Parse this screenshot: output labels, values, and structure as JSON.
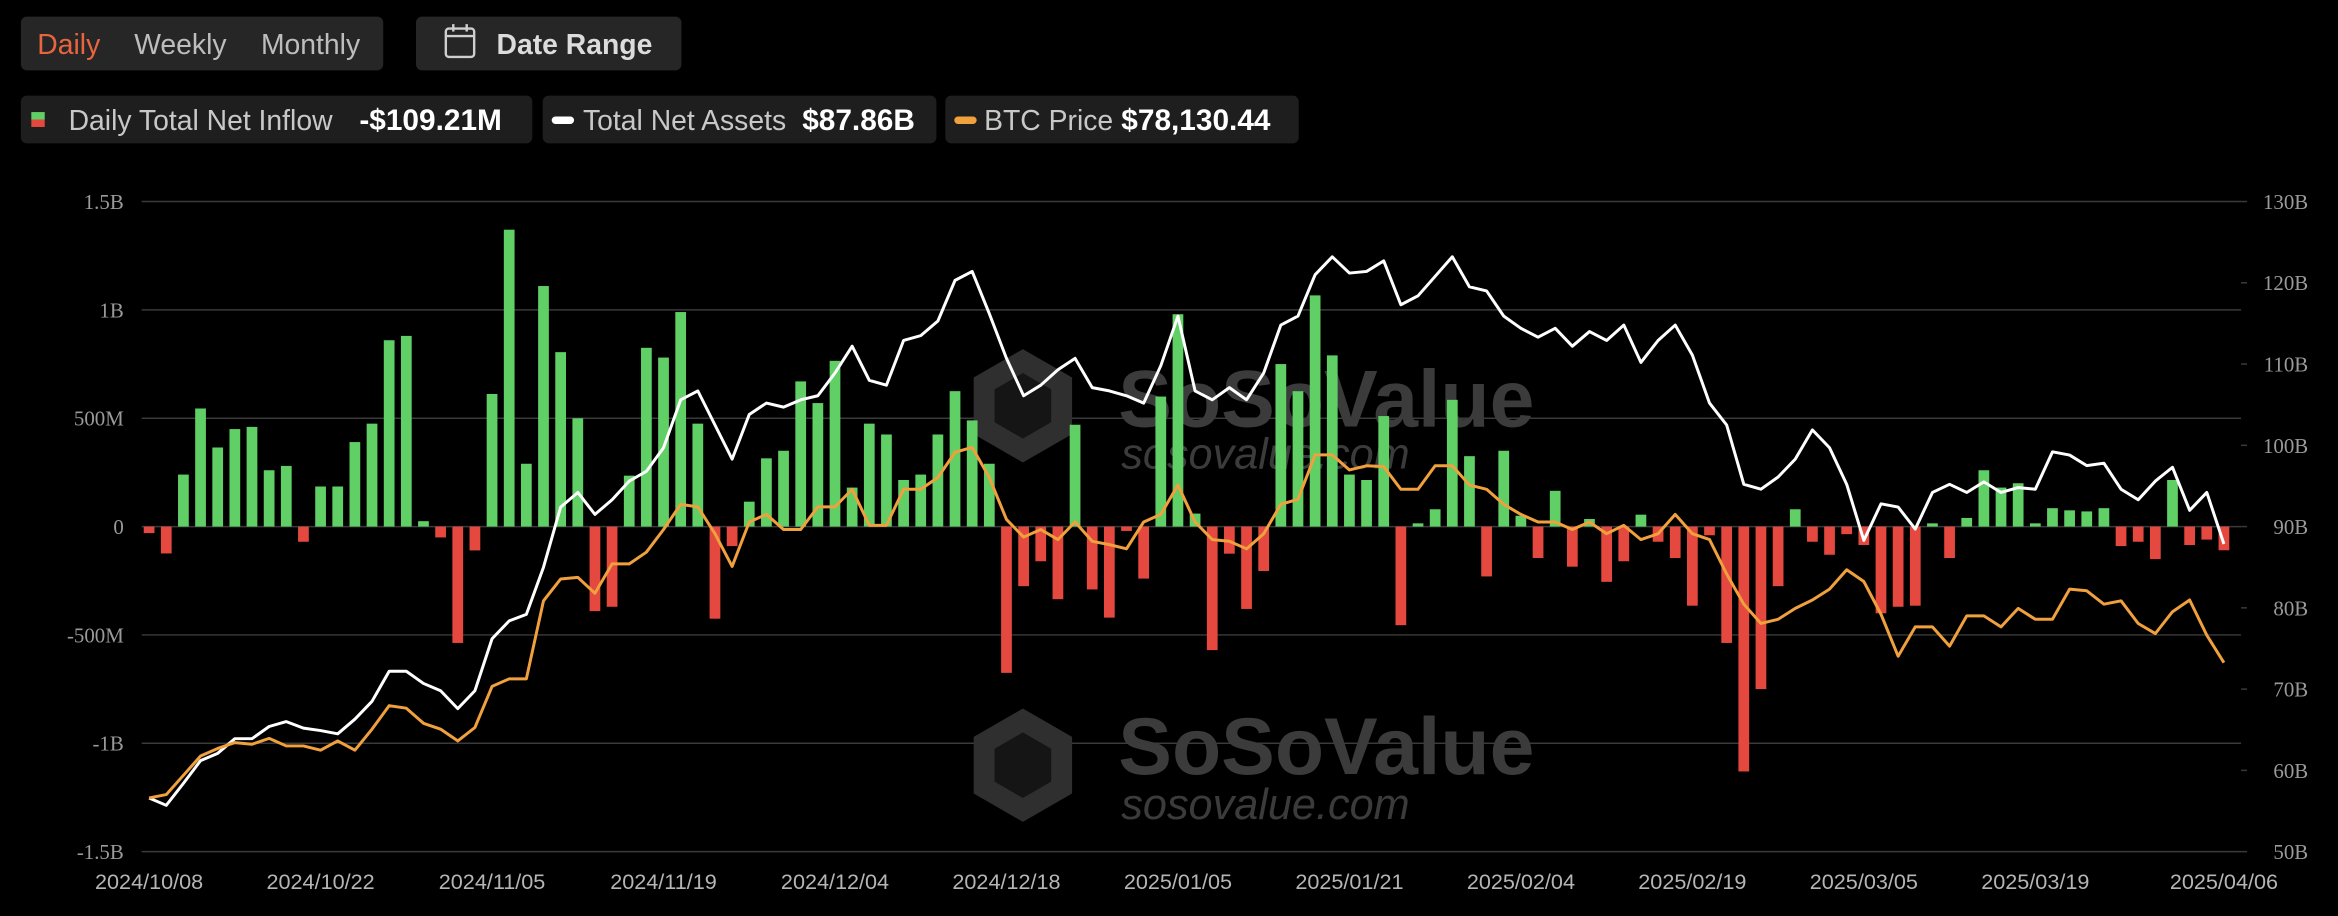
{
  "controls": {
    "periods": [
      "Daily",
      "Weekly",
      "Monthly"
    ],
    "active_period": 0,
    "date_range": "Date Range"
  },
  "watermark": {
    "brand": "SoSoValue",
    "site": "sosovalue.com"
  },
  "chart_data": {
    "type": "bar-line",
    "categories": [
      "2024/10/08",
      null,
      null,
      null,
      null,
      null,
      null,
      null,
      null,
      null,
      "2024/10/22",
      null,
      null,
      null,
      null,
      null,
      null,
      null,
      null,
      null,
      "2024/11/05",
      null,
      null,
      null,
      null,
      null,
      null,
      null,
      null,
      null,
      "2024/11/19",
      null,
      null,
      null,
      null,
      null,
      null,
      null,
      null,
      null,
      "2024/12/04",
      null,
      null,
      null,
      null,
      null,
      null,
      null,
      null,
      null,
      "2024/12/18",
      null,
      null,
      null,
      null,
      null,
      null,
      null,
      null,
      null,
      "2025/01/05",
      null,
      null,
      null,
      null,
      null,
      null,
      null,
      null,
      null,
      "2025/01/21",
      null,
      null,
      null,
      null,
      null,
      null,
      null,
      null,
      null,
      "2025/02/04",
      null,
      null,
      null,
      null,
      null,
      null,
      null,
      null,
      null,
      "2025/02/19",
      null,
      null,
      null,
      null,
      null,
      null,
      null,
      null,
      null,
      "2025/03/05",
      null,
      null,
      null,
      null,
      null,
      null,
      null,
      null,
      null,
      "2025/03/19",
      null,
      null,
      null,
      null,
      null,
      null,
      null,
      null,
      null,
      null,
      "2025/04/06"
    ],
    "series": [
      {
        "name": "Daily Total Net Inflow",
        "latest_label": "-$109.21M",
        "type": "bar",
        "color": "#5fcf66",
        "negative_color": "#e5483e",
        "values": [
          -30,
          -124,
          240,
          545,
          365,
          450,
          460,
          260,
          280,
          -70,
          185,
          185,
          390,
          475,
          860,
          880,
          25,
          -50,
          -537,
          -110,
          612,
          1370,
          290,
          1110,
          805,
          500,
          -390,
          -370,
          235,
          825,
          780,
          990,
          475,
          -425,
          -90,
          115,
          315,
          350,
          670,
          570,
          765,
          180,
          475,
          425,
          215,
          240,
          425,
          625,
          490,
          290,
          -675,
          -275,
          -160,
          -335,
          470,
          -290,
          -420,
          -20,
          -240,
          600,
          980,
          60,
          -570,
          -125,
          -380,
          -205,
          750,
          625,
          1067,
          790,
          240,
          215,
          510,
          -455,
          15,
          80,
          585,
          325,
          -230,
          350,
          50,
          -145,
          165,
          -185,
          35,
          -255,
          -160,
          55,
          -70,
          -145,
          -365,
          -40,
          -537,
          -1130,
          -750,
          -275,
          80,
          -70,
          -130,
          -35,
          -85,
          -400,
          -370,
          -365,
          15,
          -145,
          40,
          260,
          180,
          200,
          15,
          85,
          75,
          70,
          85,
          -90,
          -70,
          -150,
          215,
          -85,
          -60,
          -109.21
        ]
      },
      {
        "name": "Total Net Assets",
        "latest_label": "$87.86B",
        "type": "line",
        "axis": "y2",
        "color": "#ffffff",
        "values": [
          56.6,
          55.7,
          58.4,
          61.2,
          62.1,
          63.9,
          63.9,
          65.4,
          66.0,
          65.2,
          64.9,
          64.5,
          66.3,
          68.5,
          72.2,
          72.2,
          70.7,
          69.8,
          67.6,
          69.8,
          76.2,
          78.4,
          79.2,
          85.0,
          92.4,
          94.2,
          91.5,
          93.3,
          95.6,
          96.8,
          99.7,
          105.6,
          106.7,
          102.5,
          98.3,
          103.8,
          105.2,
          104.7,
          105.6,
          106.1,
          108.9,
          112.2,
          108.0,
          107.4,
          112.9,
          113.5,
          115.3,
          120.3,
          121.4,
          116.2,
          110.7,
          106.1,
          107.4,
          109.3,
          110.7,
          107.1,
          106.7,
          106.1,
          105.2,
          109.8,
          115.9,
          106.7,
          105.6,
          107.1,
          105.6,
          108.9,
          114.8,
          115.9,
          121.0,
          123.2,
          121.2,
          121.4,
          122.7,
          117.3,
          118.4,
          120.8,
          123.2,
          119.5,
          119.0,
          115.9,
          114.4,
          113.3,
          114.4,
          112.2,
          114.0,
          112.9,
          114.8,
          110.2,
          112.9,
          114.8,
          111.1,
          105.2,
          102.5,
          95.2,
          94.6,
          96.1,
          98.3,
          101.9,
          99.7,
          95.2,
          88.3,
          92.8,
          92.4,
          89.7,
          94.2,
          95.2,
          94.2,
          95.5,
          94.2,
          94.8,
          94.6,
          99.2,
          98.8,
          97.5,
          97.8,
          94.6,
          93.3,
          95.6,
          97.3,
          92.0,
          94.2,
          87.86
        ]
      },
      {
        "name": "BTC Price",
        "latest_label": "$78,130.44",
        "type": "line",
        "axis": "y3",
        "color": "#f0a03c",
        "values": [
          62000,
          62400,
          64700,
          67000,
          67900,
          68600,
          68400,
          69100,
          68200,
          68200,
          67700,
          68800,
          67700,
          70200,
          73000,
          72700,
          70900,
          70200,
          68800,
          70400,
          75300,
          76200,
          76200,
          85500,
          88100,
          88300,
          86400,
          89900,
          89900,
          91300,
          94000,
          97000,
          96700,
          93500,
          89600,
          94900,
          95800,
          94000,
          94000,
          96700,
          96700,
          98800,
          94500,
          94500,
          98800,
          98800,
          100200,
          103200,
          103800,
          100200,
          95200,
          93100,
          94000,
          92800,
          94900,
          92600,
          92200,
          91700,
          94900,
          95800,
          99300,
          94900,
          92800,
          92600,
          91700,
          93500,
          97000,
          97600,
          102900,
          102900,
          101100,
          101600,
          101500,
          98800,
          98800,
          101600,
          101600,
          99300,
          98800,
          97000,
          95800,
          94900,
          94900,
          94000,
          94900,
          93500,
          94500,
          92800,
          93500,
          95800,
          93500,
          92800,
          88700,
          85100,
          82800,
          83300,
          84600,
          85600,
          86900,
          89200,
          87800,
          83900,
          78900,
          82400,
          82400,
          80100,
          83700,
          83700,
          82400,
          84600,
          83300,
          83300,
          86900,
          86700,
          85100,
          85500,
          82800,
          81600,
          84200,
          85600,
          81400,
          78130.44
        ]
      }
    ],
    "ylim": [
      -1500,
      1500
    ],
    "yticks": [
      {
        "value": -1500,
        "label": "-1.5B"
      },
      {
        "value": -1000,
        "label": "-1B"
      },
      {
        "value": -500,
        "label": "-500M"
      },
      0,
      {
        "value": 500,
        "label": "500M"
      },
      {
        "value": 1000,
        "label": "1B"
      },
      {
        "value": 1500,
        "label": "1.5B"
      }
    ],
    "y2lim": [
      50,
      130
    ],
    "y2ticks": [
      {
        "value": 50,
        "label": "50B"
      },
      {
        "value": 60,
        "label": "60B"
      },
      {
        "value": 70,
        "label": "70B"
      },
      {
        "value": 80,
        "label": "80B"
      },
      {
        "value": 90,
        "label": "90B"
      },
      {
        "value": 100,
        "label": "100B"
      },
      {
        "value": 110,
        "label": "110B"
      },
      {
        "value": 120,
        "label": "120B"
      },
      {
        "value": 130,
        "label": "130B"
      }
    ],
    "y3lim": [
      55600,
      133100
    ],
    "grid": true
  }
}
